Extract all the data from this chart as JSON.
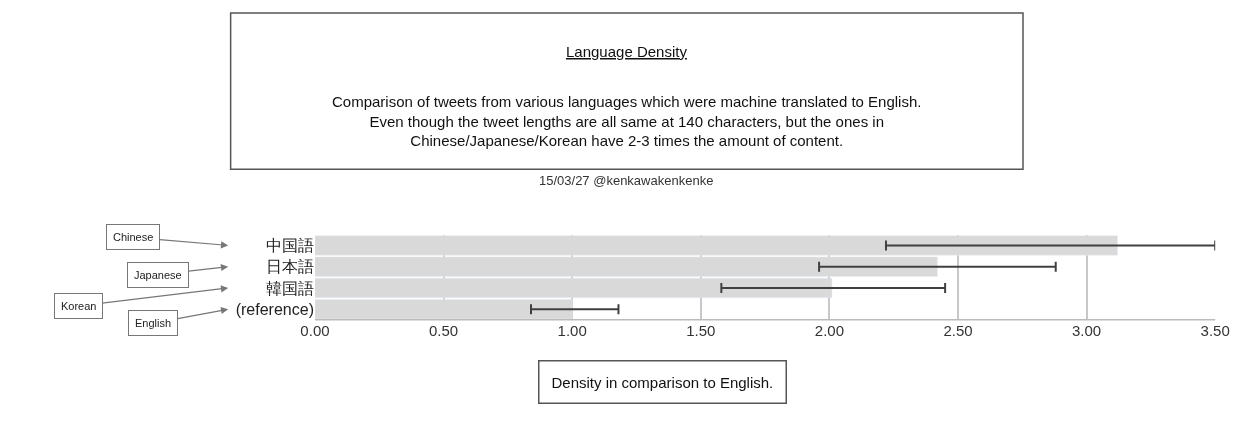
{
  "chart_data": {
    "type": "bar",
    "orientation": "horizontal",
    "title": "Language Density",
    "subtitle": "Comparison of tweets from various languages which were machine translated to English. Even though the tweet lengths are all same at 140 characters, but the ones in Chinese/Japanese/Korean have 2-3 times the amount of content.",
    "xlabel": "Density in comparison to English.",
    "annotations": [
      "15/03/27 @kenkawakenkenke",
      "Chinese",
      "Japanese",
      "Korean",
      "English"
    ],
    "categories": [
      "中国語",
      "日本語",
      "韓国語",
      "(reference)"
    ],
    "values": [
      3.12,
      2.42,
      2.01,
      1.0
    ],
    "errors": [
      [
        2.22,
        3.5
      ],
      [
        1.96,
        2.88
      ],
      [
        1.58,
        2.45
      ],
      [
        0.84,
        1.18
      ]
    ],
    "color": "#d9d9d9",
    "xlim": [
      0,
      3.5
    ],
    "xticks": [
      {
        "value": 0,
        "label": "0.00"
      },
      {
        "value": 0.5,
        "label": "0.50"
      },
      {
        "value": 1,
        "label": "1.00"
      },
      {
        "value": 1.5,
        "label": "1.50"
      },
      {
        "value": 2,
        "label": "2.00"
      },
      {
        "value": 2.5,
        "label": "2.50"
      },
      {
        "value": 3,
        "label": "3.00"
      },
      {
        "value": 3.5,
        "label": "3.50"
      }
    ],
    "grid": "x"
  }
}
